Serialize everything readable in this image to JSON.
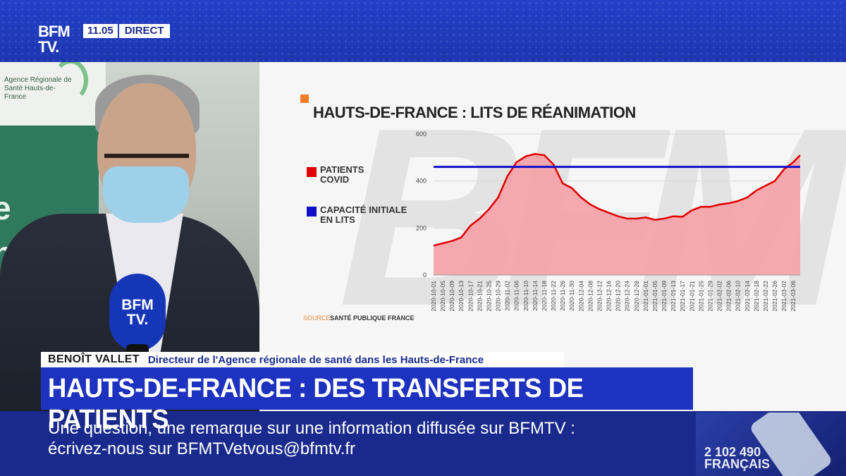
{
  "channel": {
    "logo": "BFM TV.",
    "time": "11.05",
    "live": "DIRECT"
  },
  "background": {
    "ars_text": "Agence Régionale de Santé Hauts-de-France",
    "wall_text": "e nale"
  },
  "mic_logo": "BFM TV.",
  "lower_third": {
    "name": "BENOÎT VALLET",
    "role": "Directeur de l'Agence régionale de santé dans les Hauts-de-France",
    "headline": "HAUTS-DE-FRANCE : DES TRANSFERTS DE PATIENTS"
  },
  "ticker": {
    "line1": "Une question, une remarque sur une information diffusée sur BFMTV :",
    "line2": "écrivez-nous sur BFMTVetvous@bfmtv.fr"
  },
  "promo": {
    "text": "2 102 490 FRANÇAIS"
  },
  "colors": {
    "accent": "#f07d2a",
    "covid": "#e00000",
    "capacity": "#1010c8",
    "fill": "#f5a0a6",
    "brand_blue": "#1e32c0"
  },
  "chart_data": {
    "type": "area",
    "title": "HAUTS-DE-FRANCE : LITS DE RÉANIMATION",
    "source_label": "SOURCE",
    "source_value": "SANTÉ PUBLIQUE FRANCE",
    "ylim": [
      0,
      600
    ],
    "yticks": [
      "0",
      "200",
      "400",
      "600"
    ],
    "ytick_values": [
      0,
      200,
      400,
      600
    ],
    "xlim": [
      "2020-10-01",
      "2021-03-09"
    ],
    "xticks": [
      "2020-10-01",
      "2020-10-05",
      "2020-10-09",
      "2020-10-13",
      "2020-10-17",
      "2020-10-21",
      "2020-10-25",
      "2020-10-29",
      "2020-11-02",
      "2020-11-06",
      "2020-11-10",
      "2020-11-14",
      "2020-11-18",
      "2020-11-22",
      "2020-11-26",
      "2020-11-30",
      "2020-12-04",
      "2020-12-08",
      "2020-12-12",
      "2020-12-16",
      "2020-12-20",
      "2020-12-24",
      "2020-12-28",
      "2021-01-01",
      "2021-01-05",
      "2021-01-09",
      "2021-01-13",
      "2021-01-17",
      "2021-01-21",
      "2021-01-25",
      "2021-01-29",
      "2021-02-02",
      "2021-02-06",
      "2021-02-10",
      "2021-02-14",
      "2021-02-18",
      "2021-02-22",
      "2021-02-26",
      "2021-03-02",
      "2021-03-06"
    ],
    "grid": true,
    "legend_position": "left",
    "series": [
      {
        "name": "PATIENTS COVID",
        "color": "#e00000",
        "points": [
          [
            "2020-10-01",
            125
          ],
          [
            "2020-10-05",
            135
          ],
          [
            "2020-10-09",
            145
          ],
          [
            "2020-10-13",
            160
          ],
          [
            "2020-10-17",
            210
          ],
          [
            "2020-10-21",
            240
          ],
          [
            "2020-10-25",
            280
          ],
          [
            "2020-10-29",
            330
          ],
          [
            "2020-11-02",
            420
          ],
          [
            "2020-11-06",
            480
          ],
          [
            "2020-11-10",
            505
          ],
          [
            "2020-11-14",
            515
          ],
          [
            "2020-11-18",
            510
          ],
          [
            "2020-11-22",
            470
          ],
          [
            "2020-11-26",
            390
          ],
          [
            "2020-11-30",
            370
          ],
          [
            "2020-12-04",
            330
          ],
          [
            "2020-12-08",
            300
          ],
          [
            "2020-12-12",
            280
          ],
          [
            "2020-12-16",
            265
          ],
          [
            "2020-12-20",
            250
          ],
          [
            "2020-12-24",
            240
          ],
          [
            "2020-12-28",
            240
          ],
          [
            "2021-01-01",
            245
          ],
          [
            "2021-01-05",
            235
          ],
          [
            "2021-01-09",
            240
          ],
          [
            "2021-01-13",
            250
          ],
          [
            "2021-01-17",
            248
          ],
          [
            "2021-01-21",
            275
          ],
          [
            "2021-01-25",
            290
          ],
          [
            "2021-01-29",
            290
          ],
          [
            "2021-02-02",
            300
          ],
          [
            "2021-02-06",
            305
          ],
          [
            "2021-02-10",
            315
          ],
          [
            "2021-02-14",
            330
          ],
          [
            "2021-02-18",
            360
          ],
          [
            "2021-02-22",
            380
          ],
          [
            "2021-02-26",
            400
          ],
          [
            "2021-03-02",
            450
          ],
          [
            "2021-03-06",
            480
          ],
          [
            "2021-03-09",
            510
          ]
        ]
      },
      {
        "name": "CAPACITÉ INITIALE EN LITS",
        "color": "#1010c8",
        "constant": 460
      }
    ]
  }
}
